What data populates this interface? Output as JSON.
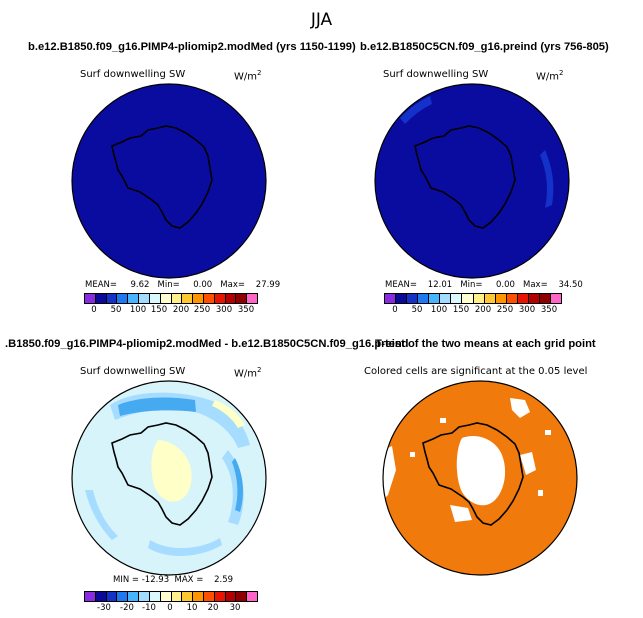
{
  "title": "JJA",
  "panels": {
    "p1": {
      "title": "b.e12.B1850.f09_g16.PIMP4-pliomip2.modMed (yrs 1150-1199)",
      "variable": "Surf downwelling SW",
      "units": "W/m",
      "units_exp": "2",
      "stats": "MEAN=     9.62   Min=     0.00   Max=    27.99",
      "fill": "#0a0ca0",
      "colorbar_labels": [
        "0",
        "50",
        "100",
        "150",
        "200",
        "250",
        "300",
        "350"
      ]
    },
    "p2": {
      "title": "b.e12.B1850C5CN.f09_g16.preind (yrs 756-805)",
      "variable": "Surf downwelling SW",
      "units": "W/m",
      "units_exp": "2",
      "stats": "MEAN=    12.01   Min=     0.00   Max=    34.50",
      "fill": "#0a0ca0",
      "colorbar_labels": [
        "0",
        "50",
        "100",
        "150",
        "200",
        "250",
        "300",
        "350"
      ]
    },
    "p3": {
      "title": ".B1850.f09_g16.PIMP4-pliomip2.modMed - b.e12.B1850C5CN.f09_g16.preind",
      "variable": "Surf downwelling SW",
      "units": "W/m",
      "units_exp": "2",
      "stats": "MIN = -12.93  MAX =    2.59",
      "fill": "#d8f4fb",
      "colorbar_labels": [
        "-30",
        "-20",
        "-10",
        "0",
        "10",
        "20",
        "30"
      ]
    },
    "p4": {
      "title": "T-test of the two means at each grid point",
      "subtitle": "Colored cells are significant at the 0.05 level",
      "fill": "#f07a0c"
    }
  },
  "colorbars": {
    "abs": [
      "#8a2be2",
      "#0a0a96",
      "#1432c8",
      "#1e78f0",
      "#46b4ff",
      "#a0dcff",
      "#dcf8ff",
      "#ffffd2",
      "#fff08c",
      "#ffc832",
      "#ff9600",
      "#ff5000",
      "#e61400",
      "#b40000",
      "#8c0000",
      "#ff64c8"
    ],
    "diff": [
      "#8a2be2",
      "#0a0a96",
      "#1432c8",
      "#1e78f0",
      "#46b4ff",
      "#a0dcff",
      "#dcf8ff",
      "#ffffd2",
      "#fff08c",
      "#ffc832",
      "#ff9600",
      "#ff5000",
      "#e61400",
      "#b40000",
      "#8c0000",
      "#ff64c8"
    ]
  }
}
